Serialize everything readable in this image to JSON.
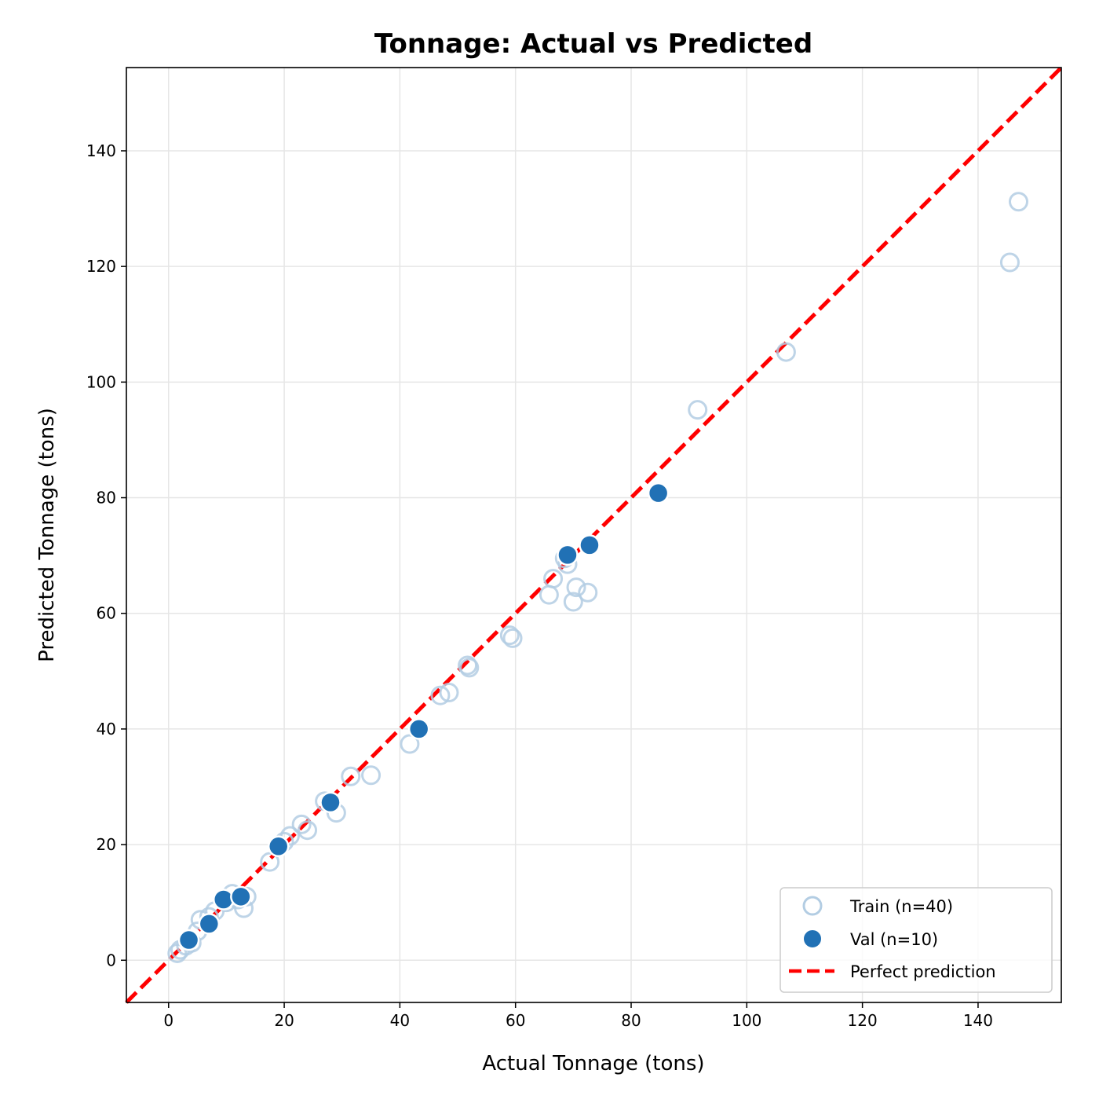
{
  "chart_data": {
    "type": "scatter",
    "title": "Tonnage: Actual vs Predicted",
    "xlabel": "Actual Tonnage (tons)",
    "ylabel": "Predicted Tonnage (tons)",
    "xlim": [
      -7.3,
      154.4
    ],
    "ylim": [
      -7.3,
      154.4
    ],
    "xticks": [
      0,
      20,
      40,
      60,
      80,
      100,
      120,
      140
    ],
    "yticks": [
      0,
      20,
      40,
      60,
      80,
      100,
      120,
      140
    ],
    "grid": true,
    "legend_position": "lower-right",
    "series": [
      {
        "name": "Train (n=40)",
        "marker": "hollow-circle",
        "color": "#b3cde3",
        "points": [
          [
            1.5,
            1.2
          ],
          [
            2,
            1.8
          ],
          [
            3,
            2.5
          ],
          [
            4,
            3
          ],
          [
            5,
            5
          ],
          [
            5.5,
            7
          ],
          [
            7,
            7.5
          ],
          [
            8,
            8.5
          ],
          [
            10,
            10
          ],
          [
            11,
            11.5
          ],
          [
            12,
            10.5
          ],
          [
            13,
            9
          ],
          [
            13.5,
            11
          ],
          [
            17.5,
            17
          ],
          [
            20,
            20.5
          ],
          [
            21,
            21.5
          ],
          [
            23,
            23.5
          ],
          [
            24,
            22.5
          ],
          [
            27,
            27.5
          ],
          [
            29,
            25.5
          ],
          [
            31.5,
            31.8
          ],
          [
            35,
            32
          ],
          [
            41.7,
            37.4
          ],
          [
            47,
            45.8
          ],
          [
            48.5,
            46.3
          ],
          [
            51.7,
            51
          ],
          [
            52,
            50.6
          ],
          [
            59,
            56.2
          ],
          [
            59.5,
            55.7
          ],
          [
            65.8,
            63.2
          ],
          [
            66.5,
            66
          ],
          [
            68.5,
            69.5
          ],
          [
            69,
            68.5
          ],
          [
            70.5,
            64.5
          ],
          [
            70,
            62
          ],
          [
            72.5,
            63.6
          ],
          [
            91.5,
            95.2
          ],
          [
            106.8,
            105.2
          ],
          [
            145.5,
            120.7
          ],
          [
            147,
            131.2
          ]
        ]
      },
      {
        "name": "Val (n=10)",
        "marker": "filled-circle",
        "color": "#2171b5",
        "points": [
          [
            3.5,
            3.5
          ],
          [
            7,
            6.3
          ],
          [
            9.5,
            10.5
          ],
          [
            12.5,
            11
          ],
          [
            19,
            19.7
          ],
          [
            28,
            27.3
          ],
          [
            43.3,
            40
          ],
          [
            69,
            70.1
          ],
          [
            72.8,
            71.8
          ],
          [
            84.7,
            80.8
          ]
        ]
      },
      {
        "name": "Perfect prediction",
        "marker": "dashed-line",
        "color": "#ff0000",
        "line": [
          [
            -7.3,
            -7.3
          ],
          [
            154.4,
            154.4
          ]
        ]
      }
    ]
  }
}
